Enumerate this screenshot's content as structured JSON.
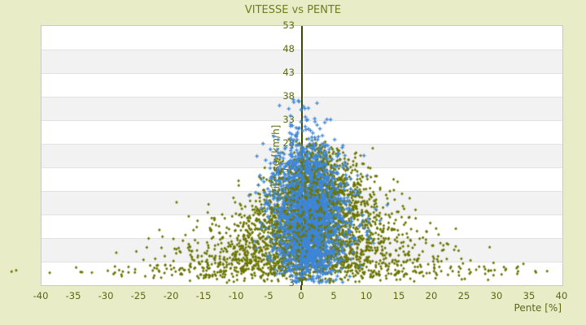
{
  "title": "VITESSE vs PENTE",
  "colors": {
    "page_background": "#e8edc8",
    "plot_background": "#ffffff",
    "band_gray": "#f2f2f2",
    "grid_line": "#e2e2e2",
    "plot_border": "#c9c9c9",
    "axis_line": "#3c4703",
    "title_text": "#6f7d1d",
    "tick_text": "#5c670f",
    "olive_marker": "#6b7502",
    "blue_marker": "#3e86d8"
  },
  "chart_data": {
    "type": "scatter",
    "title": "VITESSE vs PENTE",
    "xlabel": "Pente [%]",
    "ylabel": "Vitesse [km/h]",
    "xlim": [
      -40,
      40
    ],
    "ylim": [
      3,
      53
    ],
    "x_ticks": [
      -40,
      -35,
      -30,
      -25,
      -20,
      -15,
      -10,
      -5,
      0,
      5,
      10,
      15,
      20,
      25,
      30,
      35,
      40
    ],
    "y_ticks": [
      53,
      48,
      43,
      38,
      33,
      28,
      23,
      18,
      13,
      8,
      3
    ],
    "grid": "horizontal-alternating-bands",
    "legend": "none",
    "y_axis_position": "x=0 (vertical axis line drawn at pente 0 with labels to its left)",
    "data_estimated": true,
    "cluster_format": [
      "count",
      "x_mean",
      "x_sd",
      "y_mean",
      "y_sd"
    ],
    "series": [
      {
        "name": "olive-diamonds",
        "marker": "diamond",
        "color": "#6b7502",
        "clip": {
          "x": [
            -44.5,
            38.5
          ],
          "y": [
            3.3,
            32
          ]
        },
        "clusters": [
          [
            2,
            -43,
            0.8,
            5.8,
            0.3
          ],
          [
            320,
            0,
            13,
            5.6,
            1.1
          ],
          [
            22,
            28,
            5,
            5.7,
            0.6
          ],
          [
            14,
            -27,
            5,
            5.7,
            0.6
          ],
          [
            520,
            0.5,
            10.5,
            7.5,
            1.6
          ],
          [
            540,
            0.8,
            8.5,
            10.5,
            1.8
          ],
          [
            470,
            1.2,
            7,
            13.5,
            1.9
          ],
          [
            400,
            1.8,
            5.8,
            16.5,
            1.9
          ],
          [
            310,
            2.2,
            4.8,
            19.5,
            1.9
          ],
          [
            230,
            2.5,
            4,
            22.5,
            1.8
          ],
          [
            140,
            2.5,
            3.2,
            25.3,
            1.6
          ],
          [
            70,
            2.3,
            2.6,
            27.8,
            1.4
          ],
          [
            22,
            1.8,
            2.2,
            30,
            1
          ]
        ]
      },
      {
        "name": "blue-crosses",
        "marker": "plus",
        "color": "#3e86d8",
        "clip": {
          "x": [
            -9.5,
            14.5
          ],
          "y": [
            3.3,
            40.5
          ]
        },
        "clusters": [
          [
            300,
            1.5,
            2.6,
            8,
            2.1
          ],
          [
            900,
            1.3,
            2.3,
            14,
            4.3
          ],
          [
            680,
            1.6,
            2.9,
            19,
            4
          ],
          [
            240,
            1,
            2.3,
            26,
            2.6
          ],
          [
            55,
            0.8,
            1.9,
            31,
            2.4
          ],
          [
            12,
            0.4,
            1.6,
            37.5,
            1.6
          ],
          [
            50,
            -3.8,
            1.8,
            22,
            5
          ],
          [
            85,
            6.5,
            2.6,
            15,
            4.5
          ]
        ]
      },
      {
        "name": "olive-diamonds-overlay",
        "marker": "diamond",
        "color": "#6b7502",
        "clip": {
          "x": [
            -44.5,
            38.5
          ],
          "y": [
            3.3,
            32
          ]
        },
        "clusters": [
          [
            240,
            1.5,
            3.6,
            14.5,
            5
          ],
          [
            130,
            2,
            3,
            22.5,
            3
          ]
        ]
      }
    ]
  }
}
